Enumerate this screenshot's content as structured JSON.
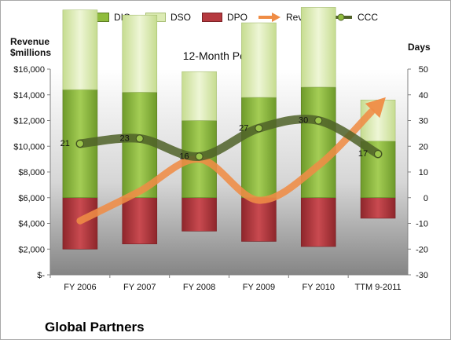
{
  "chart_data": {
    "type": "bar",
    "title": "12-Month Periods",
    "ylabel": "Revenue $millions",
    "y2label": "Days",
    "categories": [
      "FY 2006",
      "FY 2007",
      "FY 2008",
      "FY 2009",
      "FY 2010",
      "TTM 9-2011"
    ],
    "ylim": [
      0,
      16000
    ],
    "y_ticks": [
      "$-",
      "$2,000",
      "$4,000",
      "$6,000",
      "$8,000",
      "$10,000",
      "$12,000",
      "$14,000",
      "$16,000"
    ],
    "y2lim": [
      -30,
      50
    ],
    "y2_ticks": [
      "-30",
      "-20",
      "-10",
      "0",
      "10",
      "20",
      "30",
      "40",
      "50"
    ],
    "series": [
      {
        "name": "DIO",
        "axis": "right",
        "kind": "stacked-bar",
        "values": [
          42,
          41,
          30,
          39,
          43,
          22
        ]
      },
      {
        "name": "DSO",
        "axis": "right",
        "kind": "stacked-bar",
        "values": [
          -31,
          -30,
          -19,
          -29,
          -31,
          -16
        ]
      },
      {
        "name": "DPO",
        "axis": "right",
        "kind": "stacked-bar",
        "values": [
          20,
          18,
          13,
          17,
          19,
          8
        ]
      },
      {
        "name": "Revenue",
        "axis": "left",
        "kind": "line-arrow",
        "values": [
          4200,
          6500,
          9000,
          5800,
          8500,
          13200
        ]
      },
      {
        "name": "CCC",
        "axis": "right",
        "kind": "line",
        "values": [
          21,
          23,
          16,
          27,
          30,
          17
        ],
        "labels": [
          "21",
          "23",
          "16",
          "27",
          "30",
          "17"
        ]
      }
    ],
    "legend_position": "top",
    "grid": false,
    "colors": {
      "DIO": "#8fbc3c",
      "DSO": "#dcebb4",
      "DPO": "#b5393f",
      "Revenue": "#ef8c45",
      "CCC": "#4f6228"
    },
    "footer": "Global Partners"
  }
}
